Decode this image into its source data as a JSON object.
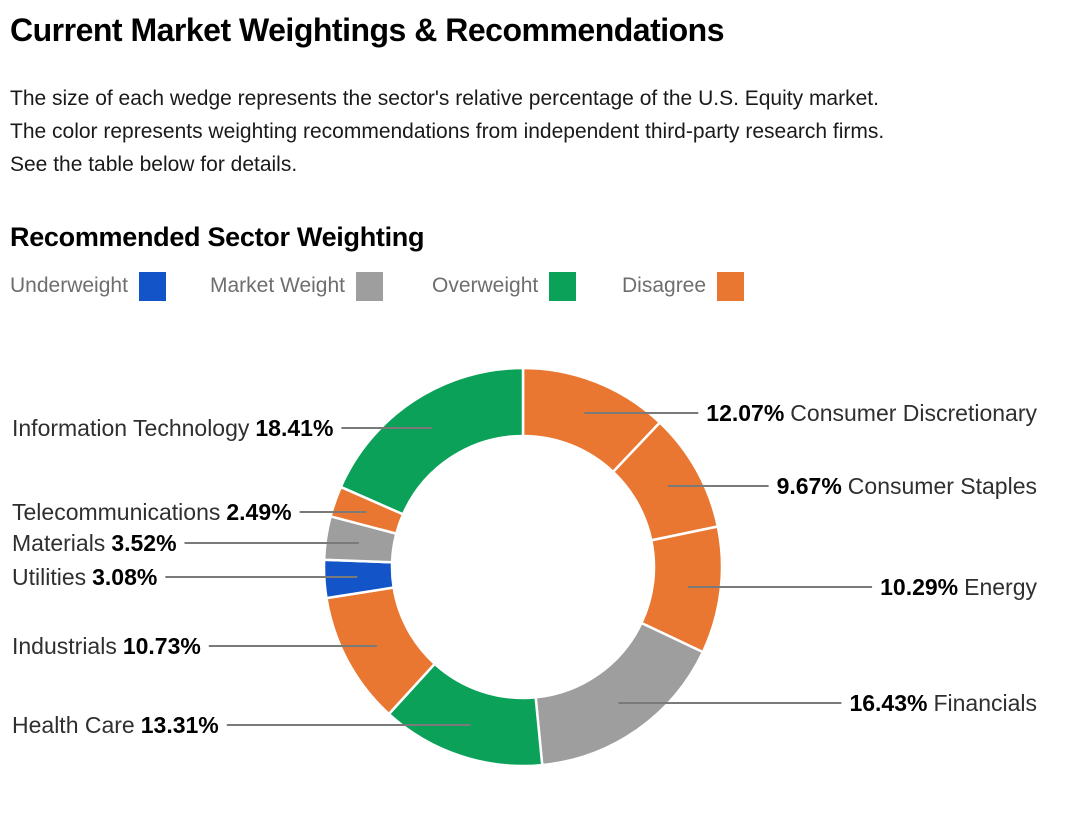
{
  "header": {
    "title": "Current Market Weightings & Recommendations",
    "description_lines": [
      "The size of each wedge represents the sector's relative percentage of the U.S. Equity market.",
      "The color represents weighting recommendations from independent third-party research firms.",
      "See the table below for details."
    ]
  },
  "section_heading": "Recommended Sector Weighting",
  "legend": {
    "items": [
      {
        "label": "Underweight",
        "color": "#1355C8"
      },
      {
        "label": "Market Weight",
        "color": "#9E9E9E"
      },
      {
        "label": "Overweight",
        "color": "#0BA159"
      },
      {
        "label": "Disagree",
        "color": "#E97732"
      }
    ]
  },
  "chart_data": {
    "type": "pie",
    "subtype": "donut",
    "title": "Recommended Sector Weighting",
    "unit": "%",
    "start_angle_deg": 0,
    "direction": "clockwise",
    "legend_position": "top",
    "slices": [
      {
        "label": "Consumer Discretionary",
        "value": 12.07,
        "recommendation": "Disagree",
        "color": "#E97732",
        "label_side": "right"
      },
      {
        "label": "Consumer Staples",
        "value": 9.67,
        "recommendation": "Disagree",
        "color": "#E97732",
        "label_side": "right"
      },
      {
        "label": "Energy",
        "value": 10.29,
        "recommendation": "Disagree",
        "color": "#E97732",
        "label_side": "right"
      },
      {
        "label": "Financials",
        "value": 16.43,
        "recommendation": "Market Weight",
        "color": "#9E9E9E",
        "label_side": "right"
      },
      {
        "label": "Health Care",
        "value": 13.31,
        "recommendation": "Overweight",
        "color": "#0BA159",
        "label_side": "left"
      },
      {
        "label": "Industrials",
        "value": 10.73,
        "recommendation": "Disagree",
        "color": "#E97732",
        "label_side": "left"
      },
      {
        "label": "Utilities",
        "value": 3.08,
        "recommendation": "Underweight",
        "color": "#1355C8",
        "label_side": "left"
      },
      {
        "label": "Materials",
        "value": 3.52,
        "recommendation": "Market Weight",
        "color": "#9E9E9E",
        "label_side": "left"
      },
      {
        "label": "Telecommunications",
        "value": 2.49,
        "recommendation": "Disagree",
        "color": "#E97732",
        "label_side": "left"
      },
      {
        "label": "Information Technology",
        "value": 18.41,
        "recommendation": "Overweight",
        "color": "#0BA159",
        "label_side": "left"
      }
    ]
  }
}
